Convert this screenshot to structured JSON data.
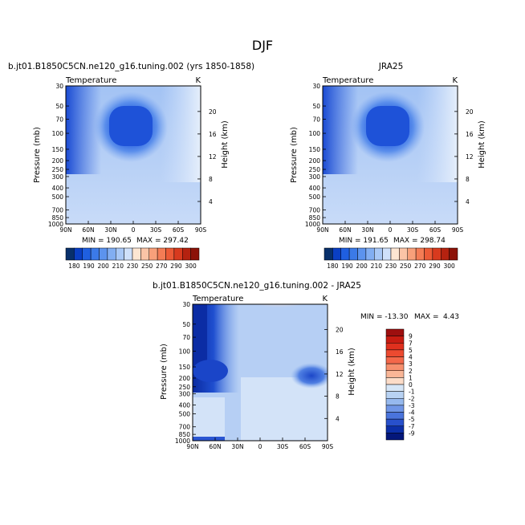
{
  "figure": {
    "title": "DJF"
  },
  "chart_data": [
    {
      "type": "heatmap",
      "id": "model",
      "title": "b.jt01.B1850C5CN.ne120_g16.tuning.002 (yrs 1850-1858)",
      "variable": "Temperature",
      "units": "K",
      "ylabel": "Pressure (mb)",
      "y2label": "Height (km)",
      "x_ticks": [
        "90N",
        "60N",
        "30N",
        "0",
        "30S",
        "60S",
        "90S"
      ],
      "y_ticks": [
        "30",
        "50",
        "70",
        "100",
        "150",
        "200",
        "250",
        "300",
        "400",
        "500",
        "700",
        "850",
        "1000"
      ],
      "y2_ticks": [
        "20",
        "16",
        "12",
        "8",
        "4"
      ],
      "min_label": "MIN = 190.65",
      "max_label": "MAX = 297.42",
      "min": 190.65,
      "max": 297.42,
      "colorbar": {
        "labels": [
          "180",
          "190",
          "200",
          "210",
          "230",
          "250",
          "270",
          "290",
          "300"
        ],
        "colors": [
          "#08306b",
          "#0a3fc4",
          "#1f5fe0",
          "#3b7ae8",
          "#5c93ee",
          "#82aef2",
          "#a9c8f6",
          "#cfe0fa",
          "#fde6d2",
          "#fbc4a6",
          "#f8a07a",
          "#f47c55",
          "#ec5a36",
          "#d83a1e",
          "#b52210",
          "#8c1208"
        ]
      }
    },
    {
      "type": "heatmap",
      "id": "obs",
      "title": "JRA25",
      "variable": "Temperature",
      "units": "K",
      "ylabel": "Pressure (mb)",
      "y2label": "Height (km)",
      "x_ticks": [
        "90N",
        "60N",
        "30N",
        "0",
        "30S",
        "60S",
        "90S"
      ],
      "y_ticks": [
        "30",
        "50",
        "70",
        "100",
        "150",
        "200",
        "250",
        "300",
        "400",
        "500",
        "700",
        "850",
        "1000"
      ],
      "y2_ticks": [
        "20",
        "16",
        "12",
        "8",
        "4"
      ],
      "min_label": "MIN = 191.65",
      "max_label": "MAX = 298.74",
      "min": 191.65,
      "max": 298.74,
      "colorbar": {
        "labels": [
          "180",
          "190",
          "200",
          "210",
          "230",
          "250",
          "270",
          "290",
          "300"
        ],
        "colors": [
          "#08306b",
          "#0a3fc4",
          "#1f5fe0",
          "#3b7ae8",
          "#5c93ee",
          "#82aef2",
          "#a9c8f6",
          "#cfe0fa",
          "#fde6d2",
          "#fbc4a6",
          "#f8a07a",
          "#f47c55",
          "#ec5a36",
          "#d83a1e",
          "#b52210",
          "#8c1208"
        ]
      }
    },
    {
      "type": "heatmap",
      "id": "diff",
      "title": "b.jt01.B1850C5CN.ne120_g16.tuning.002 - JRA25",
      "variable": "Temperature",
      "units": "K",
      "ylabel": "Pressure (mb)",
      "y2label": "Height (km)",
      "x_ticks": [
        "90N",
        "60N",
        "30N",
        "0",
        "30S",
        "60S",
        "90S"
      ],
      "y_ticks": [
        "30",
        "50",
        "70",
        "100",
        "150",
        "200",
        "250",
        "300",
        "400",
        "500",
        "700",
        "850",
        "1000"
      ],
      "y2_ticks": [
        "20",
        "16",
        "12",
        "8",
        "4"
      ],
      "min_label": "MIN = -13.30",
      "max_label": "MAX =",
      "max_value_label": "4.43",
      "min": -13.3,
      "max": 4.43,
      "colorbar": {
        "labels": [
          "9",
          "7",
          "5",
          "4",
          "3",
          "2",
          "1",
          "0",
          "-1",
          "-2",
          "-3",
          "-4",
          "-5",
          "-7",
          "-9"
        ],
        "colors": [
          "#9e0f0f",
          "#c81c12",
          "#e0301e",
          "#ec4a30",
          "#f4684a",
          "#f7906e",
          "#f9b697",
          "#fcdcc8",
          "#d6e6f7",
          "#b8d2f3",
          "#96b9ee",
          "#7096e6",
          "#4a74dc",
          "#2850cc",
          "#0c2fa8",
          "#04177a"
        ]
      }
    }
  ]
}
